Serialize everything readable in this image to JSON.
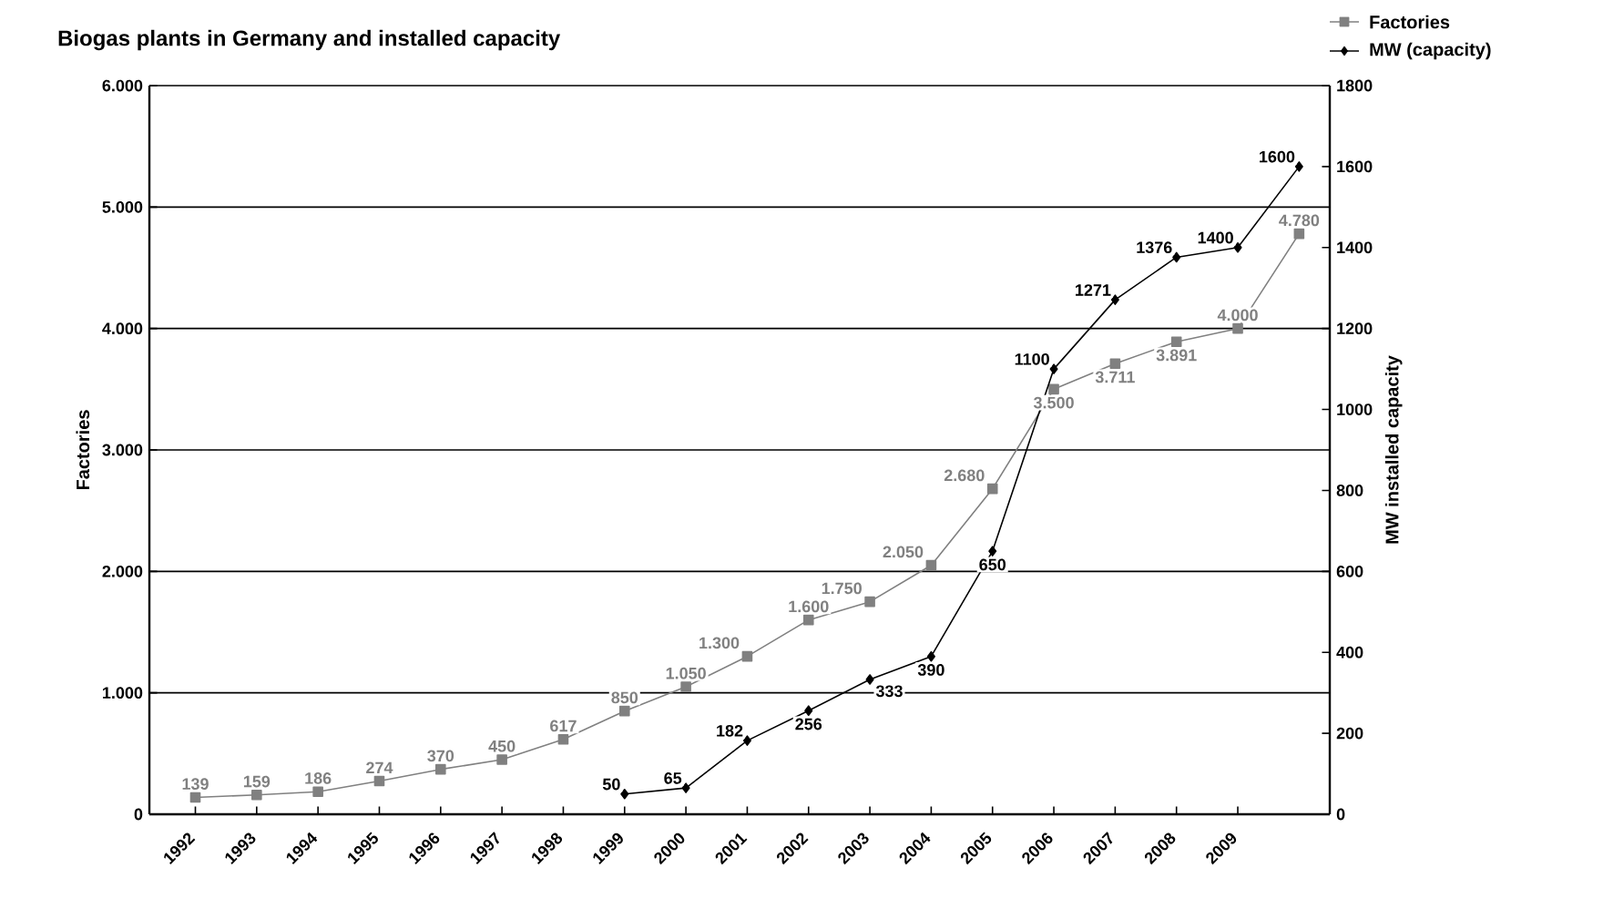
{
  "chart_data": {
    "type": "line",
    "title": "Biogas plants in Germany and installed capacity",
    "ylabel": "Factories",
    "y2label": "MW installed capacity",
    "categories": [
      "1992",
      "1993",
      "1994",
      "1995",
      "1996",
      "1997",
      "1998",
      "1999",
      "2000",
      "2001",
      "2002",
      "2003",
      "2004",
      "2005",
      "2006",
      "2007",
      "2008",
      "2009",
      null
    ],
    "series": [
      {
        "name": "Factories",
        "color": "#808080",
        "marker": "square",
        "values": [
          139,
          159,
          186,
          274,
          370,
          450,
          617,
          850,
          1050,
          1300,
          1600,
          1750,
          2050,
          2680,
          3500,
          3711,
          3891,
          4000,
          4780
        ],
        "value_labels": [
          "139",
          "159",
          "186",
          "274",
          "370",
          "450",
          "617",
          "850",
          "1.050",
          "1.300",
          "1.600",
          "1.750",
          "2.050",
          "2.680",
          "3.500",
          "3.711",
          "3.891",
          "4.000",
          "4.780"
        ]
      },
      {
        "name": "MW (capacity)",
        "color": "#000000",
        "marker": "diamond",
        "axis": "y2",
        "values": [
          null,
          null,
          null,
          null,
          null,
          null,
          null,
          50,
          65,
          182,
          256,
          333,
          390,
          650,
          1100,
          1271,
          1376,
          1400,
          1600
        ],
        "value_labels": [
          null,
          null,
          null,
          null,
          null,
          null,
          null,
          "50",
          "65",
          "182",
          "256",
          "333",
          "390",
          "650",
          "1100",
          "1271",
          "1376",
          "1400",
          "1600"
        ]
      }
    ],
    "ylim": [
      0,
      6000
    ],
    "yticks": [
      {
        "value": 0,
        "label": "0"
      },
      {
        "value": 1000,
        "label": "1.000"
      },
      {
        "value": 2000,
        "label": "2.000"
      },
      {
        "value": 3000,
        "label": "3.000"
      },
      {
        "value": 4000,
        "label": "4.000"
      },
      {
        "value": 5000,
        "label": "5.000"
      },
      {
        "value": 6000,
        "label": "6.000"
      }
    ],
    "y2lim": [
      0,
      1800
    ],
    "y2ticks": [
      0,
      200,
      400,
      600,
      800,
      1000,
      1200,
      1400,
      1600,
      1800
    ],
    "grid": "y",
    "legend": "top right"
  }
}
